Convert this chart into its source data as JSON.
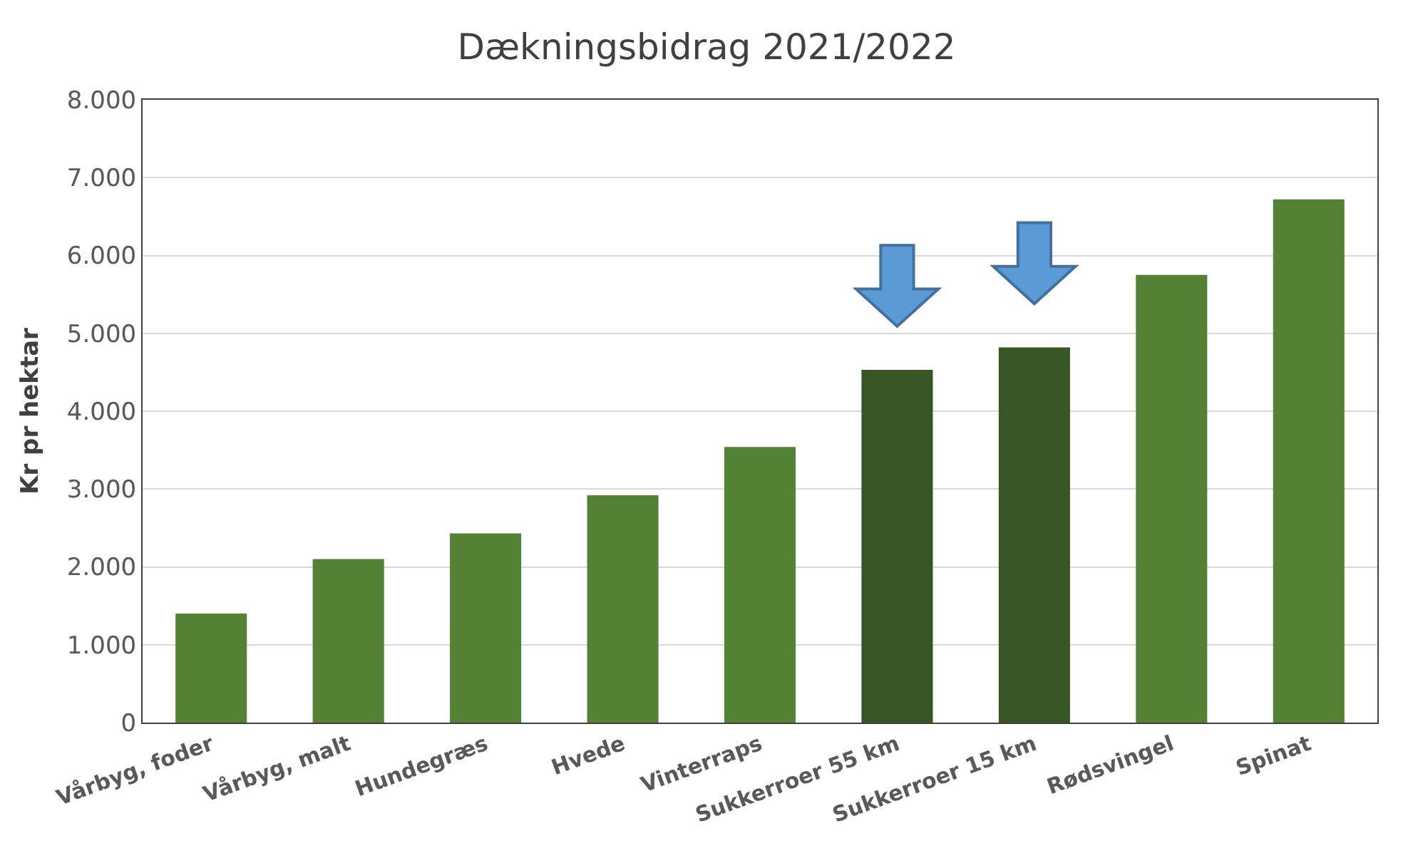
{
  "chart_data": {
    "type": "bar",
    "title": "Dækningsbidrag 2021/2022",
    "ylabel": "Kr pr hektar",
    "categories": [
      "Vårbyg, foder",
      "Vårbyg, malt",
      "Hundegræs",
      "Hvede",
      "Vinterraps",
      "Sukkerroer 55 km",
      "Sukkerroer 15 km",
      "Rødsvingel",
      "Spinat"
    ],
    "values": [
      1400,
      2100,
      2430,
      2920,
      3540,
      4530,
      4820,
      5750,
      6720
    ],
    "colors": [
      "#548235",
      "#548235",
      "#548235",
      "#548235",
      "#548235",
      "#375623",
      "#375623",
      "#548235",
      "#548235"
    ],
    "ylim": [
      0,
      8000
    ],
    "yticks": [
      0,
      {
        "value": 1000,
        "label": "1.000"
      },
      {
        "value": 2000,
        "label": "2.000"
      },
      {
        "value": 3000,
        "label": "3.000"
      },
      {
        "value": 4000,
        "label": "4.000"
      },
      {
        "value": 5000,
        "label": "5.000"
      },
      {
        "value": 6000,
        "label": "6.000"
      },
      {
        "value": 7000,
        "label": "7.000"
      },
      {
        "value": 8000,
        "label": "8.000"
      }
    ],
    "grid": "y"
  }
}
